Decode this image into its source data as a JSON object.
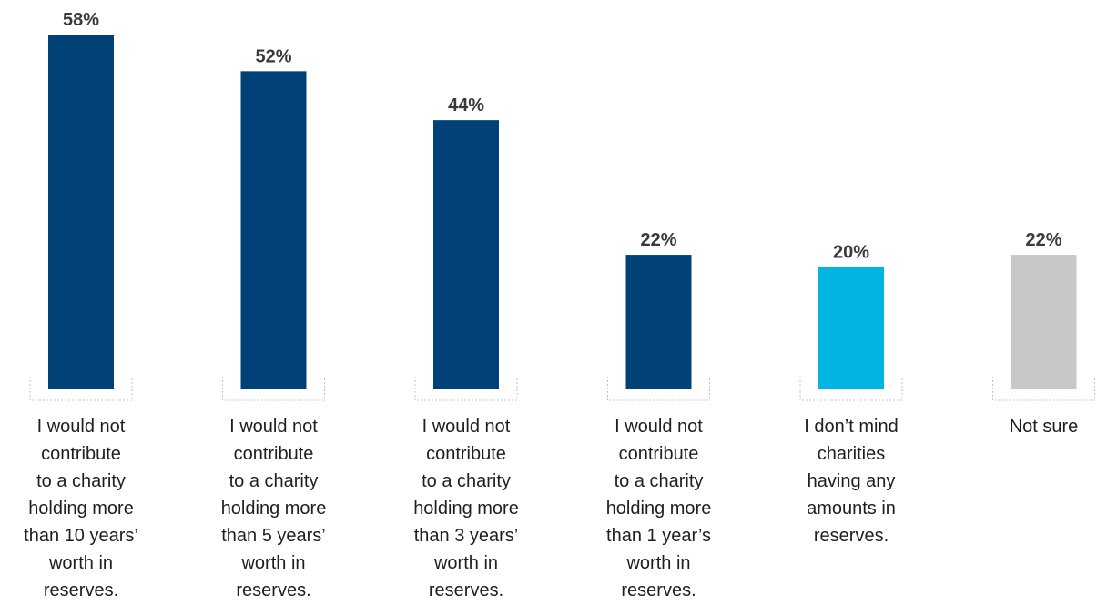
{
  "chart_data": {
    "type": "bar",
    "categories": [
      "I would not contribute to a charity holding more than 10 years’ worth in reserves.",
      "I would not contribute to a charity holding more than 5 years’ worth in reserves.",
      "I would not contribute to a charity holding more than 3 years’ worth in reserves.",
      "I would not contribute to a charity holding more than 1 year’s worth in reserves.",
      "I don’t mind charities having any amounts in reserves.",
      "Not sure"
    ],
    "category_lines": [
      [
        "I would not",
        "contribute",
        "to a charity",
        "holding more",
        "than 10 years’",
        "worth in",
        "reserves."
      ],
      [
        "I would not",
        "contribute",
        "to a charity",
        "holding more",
        "than 5 years’",
        "worth in",
        "reserves."
      ],
      [
        "I would not",
        "contribute",
        "to a charity",
        "holding more",
        "than 3 years’",
        "worth in",
        "reserves."
      ],
      [
        "I would not",
        "contribute",
        "to a charity",
        "holding more",
        "than 1 year’s",
        "worth in",
        "reserves."
      ],
      [
        "I don’t mind",
        "charities",
        "having any",
        "amounts in",
        "reserves."
      ],
      [
        "Not sure"
      ]
    ],
    "values": [
      58,
      52,
      44,
      22,
      20,
      22
    ],
    "value_labels": [
      "58%",
      "52%",
      "44%",
      "22%",
      "20%",
      "22%"
    ],
    "bar_colors": [
      "#004278",
      "#004278",
      "#004278",
      "#004278",
      "#00b5e2",
      "#c8c8c8"
    ],
    "title": "",
    "xlabel": "",
    "ylabel": "",
    "ylim": [
      0,
      58
    ],
    "grid": false,
    "legend": "none"
  }
}
